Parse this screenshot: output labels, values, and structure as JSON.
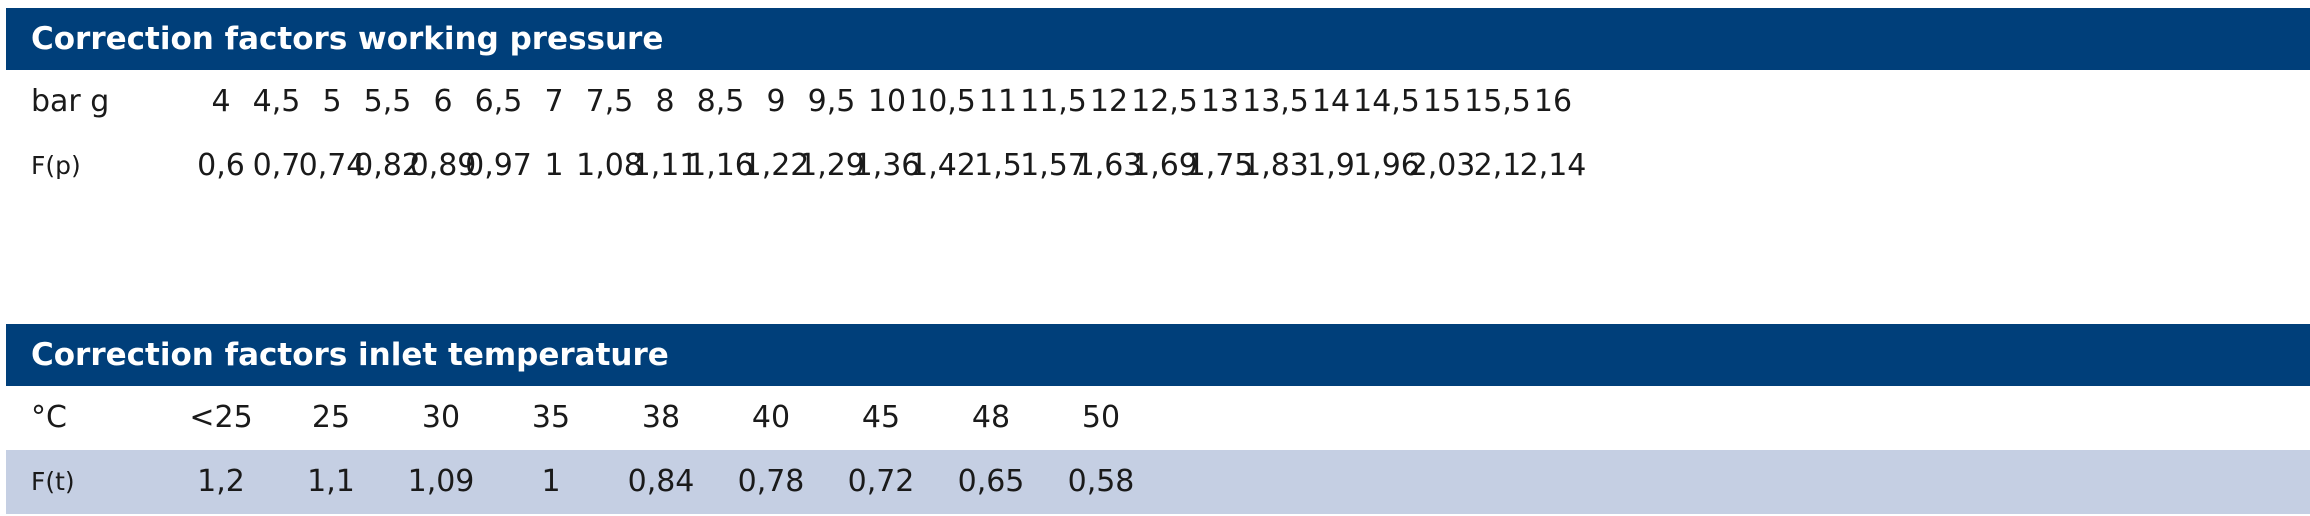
{
  "pressure_table": {
    "title": "Correction factors working pressure",
    "header_label": "bar g",
    "factor_label": "F(p)",
    "values": [
      "4",
      "4,5",
      "5",
      "5,5",
      "6",
      "6,5",
      "7",
      "7,5",
      "8",
      "8,5",
      "9",
      "9,5",
      "10",
      "10,5",
      "11",
      "11,5",
      "12",
      "12,5",
      "13",
      "13,5",
      "14",
      "14,5",
      "15",
      "15,5",
      "16"
    ],
    "factors": [
      "0,6",
      "0,7",
      "0,74",
      "0,82",
      "0,89",
      "0,97",
      "1",
      "1,08",
      "1,11",
      "1,16",
      "1,22",
      "1,29",
      "1,36",
      "1,42",
      "1,5",
      "1,57",
      "1,63",
      "1,69",
      "1,75",
      "1,83",
      "1,9",
      "1,96",
      "2,03",
      "2,1",
      "2,14"
    ]
  },
  "temperature_table": {
    "title": "Correction factors inlet temperature",
    "header_label": "°C",
    "factor_label": "F(t)",
    "values": [
      "<25",
      "25",
      "30",
      "35",
      "38",
      "40",
      "45",
      "48",
      "50"
    ],
    "factors": [
      "1,2",
      "1,1",
      "1,09",
      "1",
      "0,84",
      "0,78",
      "0,72",
      "0,65",
      "0,58"
    ]
  }
}
